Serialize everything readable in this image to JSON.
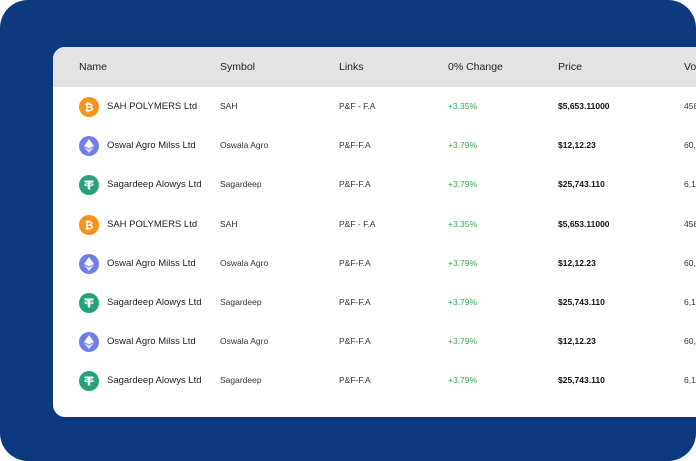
{
  "table": {
    "headers": {
      "name": "Name",
      "symbol": "Symbol",
      "links": "Links",
      "change": "0% Change",
      "price": "Price",
      "volume": "Vo"
    },
    "rows": [
      {
        "icon": "bitcoin-icon",
        "name": "SAH POLYMERS Ltd",
        "symbol": "SAH",
        "links": "P&F - F.A",
        "change": "+3.35%",
        "price": "$5,653.11000",
        "volume": "458"
      },
      {
        "icon": "ethereum-icon",
        "name": "Oswal Agro Milss Ltd",
        "symbol": "Oswala Agro",
        "links": "P&F-F.A",
        "change": "+3.79%",
        "price": "$12,12.23",
        "volume": "60,"
      },
      {
        "icon": "tether-icon",
        "name": "Sagardeep Alowys Ltd",
        "symbol": "Sagardeep",
        "links": "P&F-F.A",
        "change": "+3.79%",
        "price": "$25,743.110",
        "volume": "6,1"
      },
      {
        "icon": "bitcoin-icon",
        "name": "SAH POLYMERS Ltd",
        "symbol": "SAH",
        "links": "P&F - F.A",
        "change": "+3.35%",
        "price": "$5,653.11000",
        "volume": "458"
      },
      {
        "icon": "ethereum-icon",
        "name": "Oswal Agro Milss Ltd",
        "symbol": "Oswala Agro",
        "links": "P&F-F.A",
        "change": "+3.79%",
        "price": "$12,12.23",
        "volume": "60,"
      },
      {
        "icon": "tether-icon",
        "name": "Sagardeep Alowys Ltd",
        "symbol": "Sagardeep",
        "links": "P&F-F.A",
        "change": "+3.79%",
        "price": "$25,743.110",
        "volume": "6,1"
      },
      {
        "icon": "ethereum-icon",
        "name": "Oswal Agro Milss Ltd",
        "symbol": "Oswala Agro",
        "links": "P&F-F.A",
        "change": "+3.79%",
        "price": "$12,12.23",
        "volume": "60,"
      },
      {
        "icon": "tether-icon",
        "name": "Sagardeep Alowys Ltd",
        "symbol": "Sagardeep",
        "links": "P&F-F.A",
        "change": "+3.79%",
        "price": "$25,743.110",
        "volume": "6,1"
      }
    ]
  },
  "colors": {
    "background": "#0d3a7e",
    "header_bg": "#e3e3e3",
    "positive_change": "#3aa55a",
    "bitcoin": "#f7931a",
    "ethereum": "#6f7fe6",
    "tether": "#26a17b"
  }
}
